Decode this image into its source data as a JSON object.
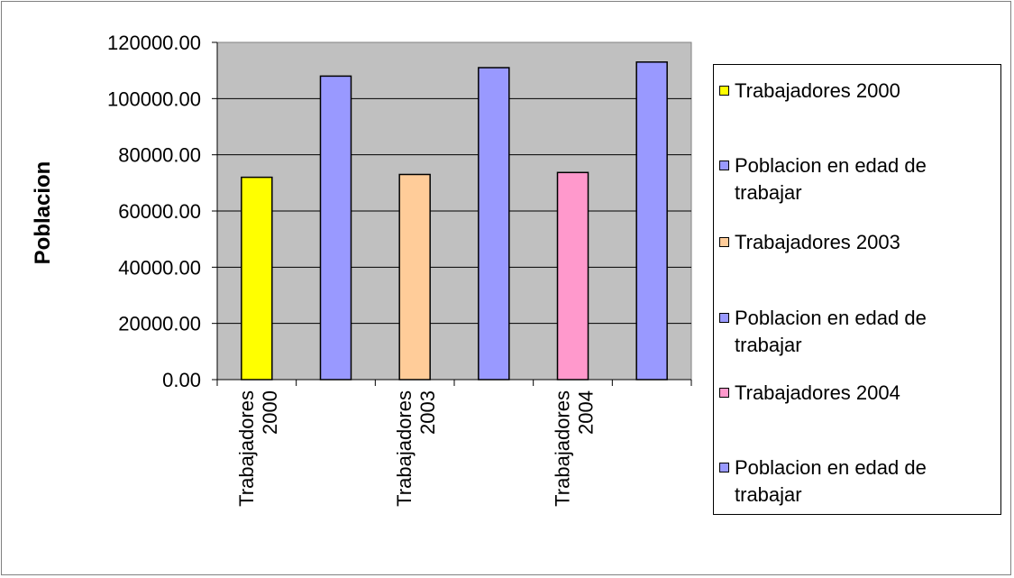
{
  "chart_data": {
    "type": "bar",
    "ylabel": "Poblacion",
    "ylim": [
      0,
      120000
    ],
    "ytick_labels": [
      "0.00",
      "20000.00",
      "40000.00",
      "60000.00",
      "80000.00",
      "100000.00",
      "120000.00"
    ],
    "yticks": [
      0,
      20000,
      40000,
      60000,
      80000,
      100000,
      120000
    ],
    "grid": true,
    "plot_background": "#c0c0c0",
    "legend_position": "right",
    "categories": [
      "Trabajadores 2000",
      "Poblacion en edad de trabajar",
      "Trabajadores 2003",
      "Poblacion en edad de trabajar",
      "Trabajadores 2004",
      "Poblacion en edad de trabajar"
    ],
    "tick_labels": [
      "Trabajadores 2000",
      "",
      "Trabajadores 2003",
      "",
      "Trabajadores 2004",
      ""
    ],
    "values": [
      72000,
      108000,
      73000,
      111000,
      73700,
      113000
    ],
    "colors": [
      "#ffff00",
      "#9999ff",
      "#ffcc99",
      "#9999ff",
      "#ff99cc",
      "#9999ff"
    ],
    "legend": [
      {
        "label": "Trabajadores 2000",
        "color": "#ffff00"
      },
      {
        "label": "Poblacion en edad de trabajar",
        "color": "#9999ff"
      },
      {
        "label": "Trabajadores 2003",
        "color": "#ffcc99"
      },
      {
        "label": "Poblacion en edad de trabajar",
        "color": "#9999ff"
      },
      {
        "label": "Trabajadores 2004",
        "color": "#ff99cc"
      },
      {
        "label": "Poblacion en edad de trabajar",
        "color": "#9999ff"
      }
    ]
  }
}
